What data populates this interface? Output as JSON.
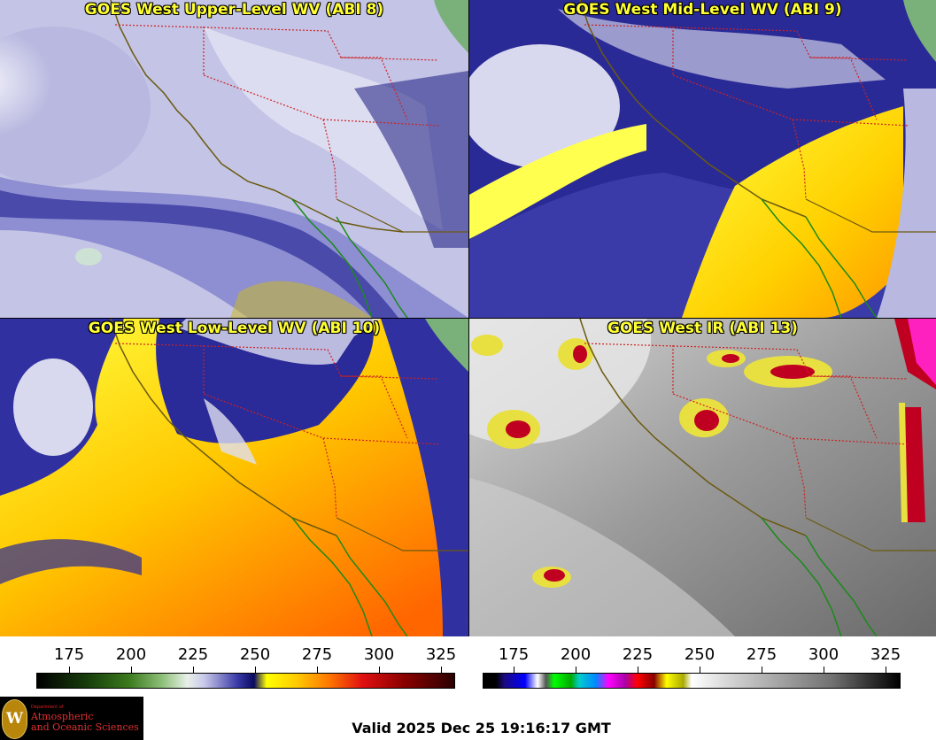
{
  "panels": {
    "upper": {
      "title": "GOES West Upper-Level WV (ABI 8)"
    },
    "mid": {
      "title": "GOES West Mid-Level WV (ABI 9)"
    },
    "low": {
      "title": "GOES West Low-Level WV (ABI 10)"
    },
    "ir": {
      "title": "GOES West IR (ABI 13)"
    }
  },
  "colorbars": {
    "wv": {
      "ticks": [
        "175",
        "200",
        "225",
        "250",
        "275",
        "300",
        "325"
      ]
    },
    "ir": {
      "ticks": [
        "175",
        "200",
        "225",
        "250",
        "275",
        "300",
        "325"
      ]
    }
  },
  "logo": {
    "dept": "Department of",
    "line1": "Atmospheric",
    "line2": "and Oceanic Sciences",
    "seal_letter": "W"
  },
  "footer": {
    "valid": "Valid 2025 Dec 25 19:16:17 GMT"
  },
  "colors": {
    "title_text": "#ffff33",
    "border_state": "#cc2222",
    "coast": "#6b5a10",
    "mexico_coast": "#1a8a1a"
  }
}
